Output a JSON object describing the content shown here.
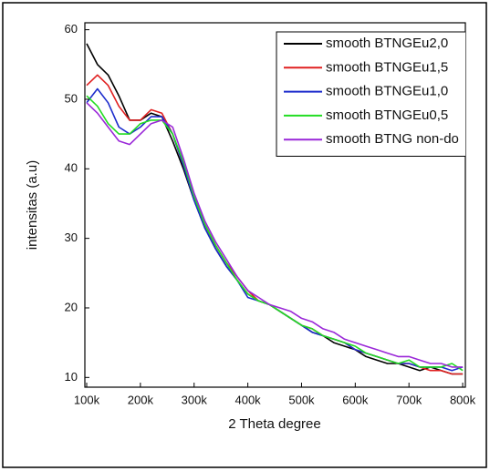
{
  "chart_data": {
    "type": "line",
    "x_label": "2 Theta degree",
    "y_label": "intensitas (a.u)",
    "x": [
      100000,
      120000,
      140000,
      160000,
      180000,
      200000,
      220000,
      240000,
      260000,
      280000,
      300000,
      320000,
      340000,
      360000,
      380000,
      400000,
      420000,
      440000,
      460000,
      480000,
      500000,
      520000,
      540000,
      560000,
      580000,
      600000,
      620000,
      640000,
      660000,
      680000,
      700000,
      720000,
      740000,
      760000,
      780000,
      800000
    ],
    "series": [
      {
        "name": "smooth BTNGEu2,0",
        "color": "#000000",
        "values": [
          58,
          55,
          53.5,
          50.5,
          47,
          47,
          48,
          47.5,
          44,
          40,
          35.5,
          31.5,
          28.5,
          26,
          24,
          22,
          21,
          20.5,
          19.5,
          18.5,
          17.5,
          16.5,
          16,
          15,
          14.5,
          14,
          13,
          12.5,
          12,
          12,
          11.5,
          11,
          11.5,
          11,
          10.5,
          10.5
        ]
      },
      {
        "name": "smooth BTNGEu1,5",
        "color": "#e02020",
        "values": [
          52,
          53.5,
          52,
          49,
          47,
          47,
          48.5,
          48,
          45,
          40.5,
          36,
          32,
          29,
          26.5,
          24.5,
          22.5,
          21,
          20.5,
          19.5,
          18.5,
          17.5,
          17,
          16,
          15.5,
          15,
          14,
          13.5,
          13,
          12.5,
          12,
          12,
          11.5,
          11,
          11,
          10.5,
          10.5
        ]
      },
      {
        "name": "smooth BTNGEu1,0",
        "color": "#1c2ccc",
        "values": [
          49.5,
          51.5,
          49.5,
          46,
          45,
          46,
          47.5,
          47.5,
          45,
          40.5,
          35.5,
          31.5,
          28.5,
          26,
          24,
          21.5,
          21,
          20.5,
          19.5,
          18.5,
          17.5,
          16.5,
          16,
          15.5,
          15,
          14,
          13.5,
          13,
          12.5,
          12,
          12,
          11.5,
          11.5,
          11.5,
          11,
          11.5
        ]
      },
      {
        "name": "smooth BTNGEu0,5",
        "color": "#22dd22",
        "values": [
          50.5,
          49,
          46.5,
          45,
          45,
          46.5,
          47,
          47,
          45,
          41,
          36,
          32,
          29,
          26.5,
          24,
          22,
          21,
          20.5,
          19.5,
          18.5,
          17.5,
          17,
          16,
          15.5,
          15,
          14.5,
          13.5,
          13,
          12.5,
          12,
          12.5,
          11.5,
          11.5,
          11.5,
          12,
          11
        ]
      },
      {
        "name": "smooth BTNG non-do",
        "color": "#9a28d8",
        "values": [
          49.5,
          48,
          46,
          44,
          43.5,
          45,
          46.5,
          47,
          46,
          41.5,
          36.5,
          32.5,
          29.5,
          27,
          24.5,
          22.5,
          21.5,
          20.5,
          20,
          19.5,
          18.5,
          18,
          17,
          16.5,
          15.5,
          15,
          14.5,
          14,
          13.5,
          13,
          13,
          12.5,
          12,
          12,
          11.5,
          11.5
        ]
      }
    ],
    "xlim": [
      96600,
      805000
    ],
    "ylim": [
      8.6,
      61
    ],
    "xticks": [
      {
        "value": 100000,
        "label": "100k"
      },
      {
        "value": 200000,
        "label": "200k"
      },
      {
        "value": 300000,
        "label": "300k"
      },
      {
        "value": 400000,
        "label": "400k"
      },
      {
        "value": 500000,
        "label": "500k"
      },
      {
        "value": 600000,
        "label": "600k"
      },
      {
        "value": 700000,
        "label": "700k"
      },
      {
        "value": 800000,
        "label": "800k"
      }
    ],
    "yticks": [
      10,
      20,
      30,
      40,
      50,
      60
    ],
    "grid": false,
    "legend": "top-right"
  }
}
